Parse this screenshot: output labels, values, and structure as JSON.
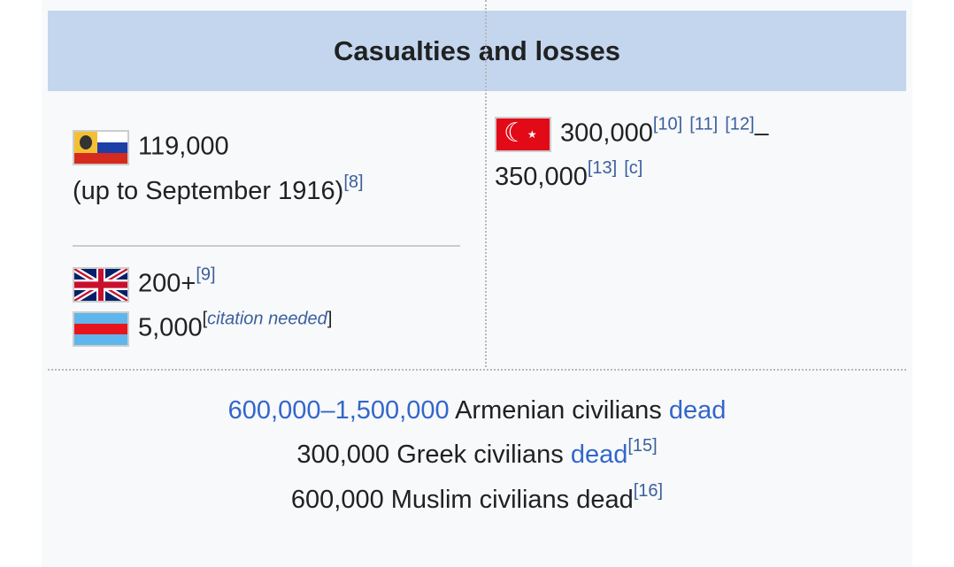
{
  "header": {
    "title": "Casualties and losses"
  },
  "left": {
    "russia": {
      "flag": "russian-empire-flag",
      "value": "119,000",
      "note": "(up to September 1916)",
      "ref": "[8]"
    },
    "uk": {
      "flag": "uk-flag",
      "value": "200+",
      "ref": "[9]"
    },
    "armenia": {
      "flag": "armenian-volunteers-flag",
      "value": "5,000",
      "ref_open": "[",
      "ref_text": "citation needed",
      "ref_close": "]"
    }
  },
  "right": {
    "ottoman": {
      "flag": "ottoman-flag",
      "value_low": "300,000",
      "refs1": [
        "[10]",
        "[11]",
        "[12]"
      ],
      "dash": "–",
      "value_high": "350,000",
      "refs2": [
        "[13]",
        "[c]"
      ]
    }
  },
  "civilians": [
    {
      "link": "600,000–1,500,000",
      "text": " Armenian civilians ",
      "link2": "dead"
    },
    {
      "text": "300,000 Greek civilians ",
      "link2": "dead",
      "ref": "[15]"
    },
    {
      "text": "600,000 Muslim civilians dead",
      "ref": "[16]"
    }
  ],
  "colors": {
    "header_bg": "#c4d6ee",
    "panel_bg": "#f8f9fa",
    "link": "#3366cc",
    "ref": "#3a5f9e"
  }
}
